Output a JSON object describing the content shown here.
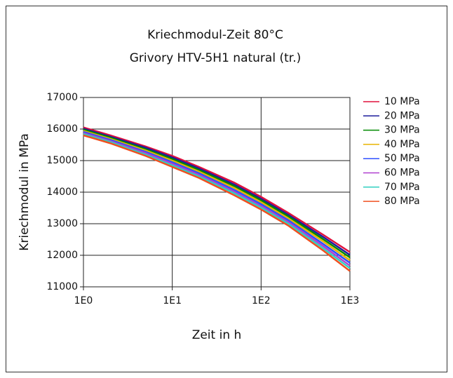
{
  "chart_data": {
    "type": "line",
    "title": "Kriechmodul-Zeit 80°C",
    "subtitle": "Grivory HTV-5H1 natural (tr.)",
    "x_label": "Zeit in h",
    "y_label": "Kriechmodul in MPa",
    "x": [
      1,
      2,
      5,
      10,
      20,
      50,
      100,
      200,
      500,
      1000
    ],
    "x_scale": "log",
    "xlim": [
      1,
      1000
    ],
    "xticks": [
      {
        "value": 1,
        "label": "1E0"
      },
      {
        "value": 10,
        "label": "1E1"
      },
      {
        "value": 100,
        "label": "1E2"
      },
      {
        "value": 1000,
        "label": "1E3"
      }
    ],
    "ylim": [
      11000,
      17000
    ],
    "yticks": [
      11000,
      12000,
      13000,
      14000,
      15000,
      16000,
      17000
    ],
    "grid": true,
    "legend": "right",
    "series": [
      {
        "name": "10 MPa",
        "color": "#e0103c",
        "values": [
          16050,
          15800,
          15450,
          15150,
          14800,
          14300,
          13850,
          13350,
          12650,
          12100
        ]
      },
      {
        "name": "20 MPa",
        "color": "#1c1c9c",
        "values": [
          16010,
          15760,
          15410,
          15100,
          14750,
          14240,
          13790,
          13290,
          12580,
          12010
        ]
      },
      {
        "name": "30 MPa",
        "color": "#008a00",
        "values": [
          15980,
          15730,
          15360,
          15050,
          14700,
          14190,
          13740,
          13240,
          12510,
          11930
        ]
      },
      {
        "name": "40 MPa",
        "color": "#e8b400",
        "values": [
          15940,
          15690,
          15320,
          15000,
          14650,
          14130,
          13680,
          13180,
          12440,
          11840
        ]
      },
      {
        "name": "50 MPa",
        "color": "#3050ff",
        "values": [
          15910,
          15660,
          15280,
          14950,
          14600,
          14070,
          13620,
          13120,
          12360,
          11760
        ]
      },
      {
        "name": "60 MPa",
        "color": "#b040d0",
        "values": [
          15870,
          15620,
          15240,
          14900,
          14550,
          14010,
          13560,
          13060,
          12290,
          11670
        ]
      },
      {
        "name": "70 MPa",
        "color": "#30d0c0",
        "values": [
          15840,
          15590,
          15190,
          14850,
          14500,
          13960,
          13510,
          13010,
          12220,
          11590
        ]
      },
      {
        "name": "80 MPa",
        "color": "#f05020",
        "values": [
          15800,
          15550,
          15150,
          14800,
          14450,
          13900,
          13450,
          12950,
          12150,
          11500
        ]
      }
    ]
  }
}
